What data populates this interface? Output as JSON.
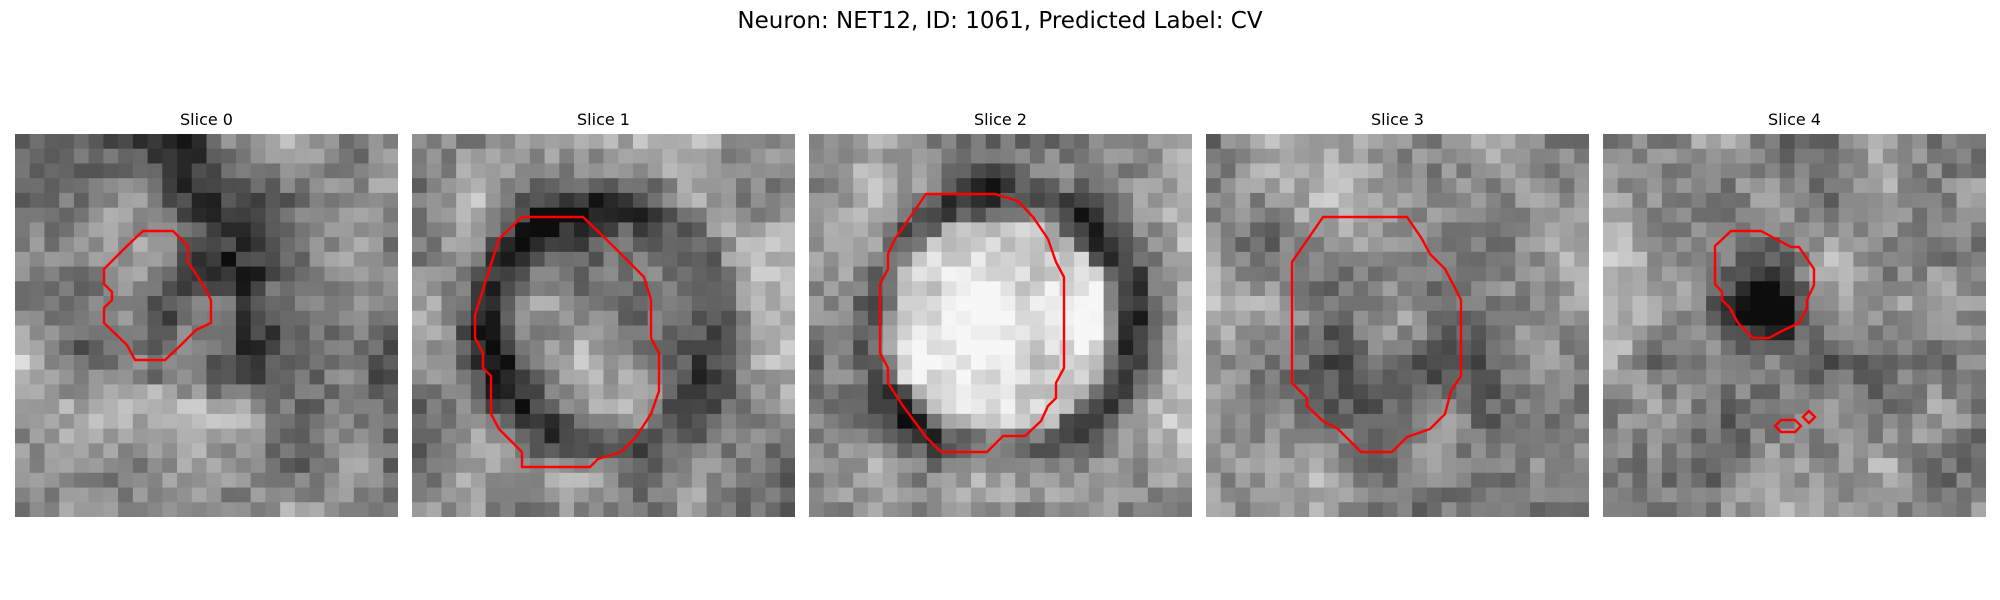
{
  "figure": {
    "title": "Neuron: NET12, ID: 1061, Predicted Label: CV",
    "contour_color": "#ff0000",
    "panels": [
      {
        "title": "Slice 0",
        "seed": 11,
        "base": 0.62,
        "ring": 0.3,
        "pattern": "diag"
      },
      {
        "title": "Slice 1",
        "seed": 23,
        "base": 0.66,
        "ring": 0.42,
        "pattern": "ring-big"
      },
      {
        "title": "Slice 2",
        "seed": 37,
        "base": 0.72,
        "ring": 0.45,
        "pattern": "bright-center"
      },
      {
        "title": "Slice 3",
        "seed": 51,
        "base": 0.6,
        "ring": 0.32,
        "pattern": "mottled"
      },
      {
        "title": "Slice 4",
        "seed": 67,
        "base": 0.64,
        "ring": 0.35,
        "pattern": "dark-center"
      }
    ]
  }
}
